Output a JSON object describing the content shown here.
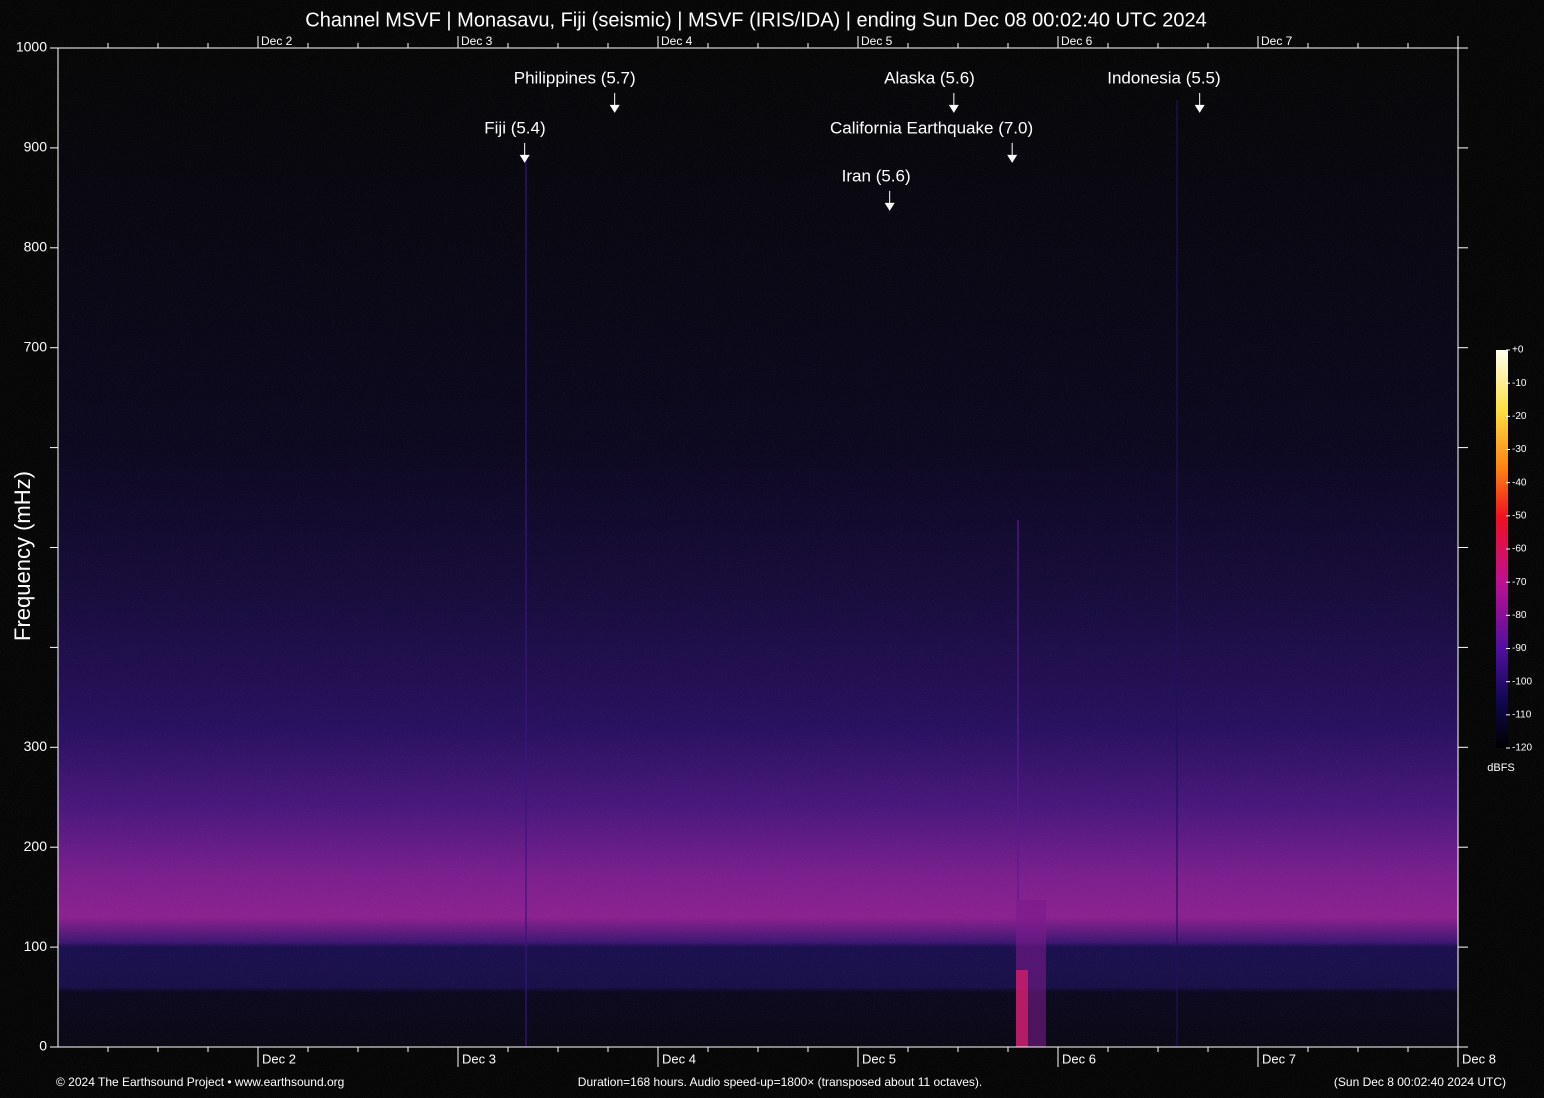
{
  "chart_data": {
    "type": "spectrogram",
    "title": "Channel MSVF | Monasavu, Fiji (seismic) | MSVF (IRIS/IDA) | ending Sun Dec 08 00:02:40 UTC 2024",
    "y_label": "Frequency (mHz)",
    "ylim": [
      0,
      1000
    ],
    "yticks": [
      0,
      100,
      200,
      300,
      700,
      800,
      900,
      1000
    ],
    "yminor_ticks": [
      400,
      500,
      600
    ],
    "xlim": [
      0,
      168
    ],
    "xticks": [
      {
        "value": 24,
        "label": "Dec 2"
      },
      {
        "value": 48,
        "label": "Dec 3"
      },
      {
        "value": 72,
        "label": "Dec 4"
      },
      {
        "value": 96,
        "label": "Dec 5"
      },
      {
        "value": 120,
        "label": "Dec 6"
      },
      {
        "value": 144,
        "label": "Dec 7"
      },
      {
        "value": 168,
        "label": "Dec 8"
      }
    ],
    "xminor_ticks": [
      6,
      12,
      18,
      30,
      36,
      42,
      54,
      60,
      66,
      78,
      84,
      90,
      102,
      108,
      114,
      126,
      132,
      138,
      150,
      156,
      162
    ],
    "annotations": [
      {
        "label": "Philippines (5.7)",
        "x": 66.8,
        "y": 935
      },
      {
        "label": "Alaska (5.6)",
        "x": 107.5,
        "y": 935
      },
      {
        "label": "Indonesia (5.5)",
        "x": 137,
        "y": 935
      },
      {
        "label": "Fiji (5.4)",
        "x": 56,
        "y": 885
      },
      {
        "label": "California Earthquake (7.0)",
        "x": 114.5,
        "y": 885
      },
      {
        "label": "Iran (5.6)",
        "x": 99.8,
        "y": 837
      }
    ],
    "colorbar": {
      "label": "dBFS",
      "lim": [
        -120,
        0
      ],
      "ticks": [
        {
          "value": 0,
          "label": "+0"
        },
        -10,
        -20,
        -30,
        -40,
        -50,
        -60,
        -70,
        -80,
        -90,
        -100,
        -110,
        -120
      ]
    },
    "footer": {
      "left": "© 2024 The Earthsound Project • www.earthsound.org",
      "center": "Duration=168 hours. Audio speed-up=1800× (transposed about 11 octaves).",
      "right": "(Sun Dec  8 00:02:40 2024 UTC)"
    }
  }
}
